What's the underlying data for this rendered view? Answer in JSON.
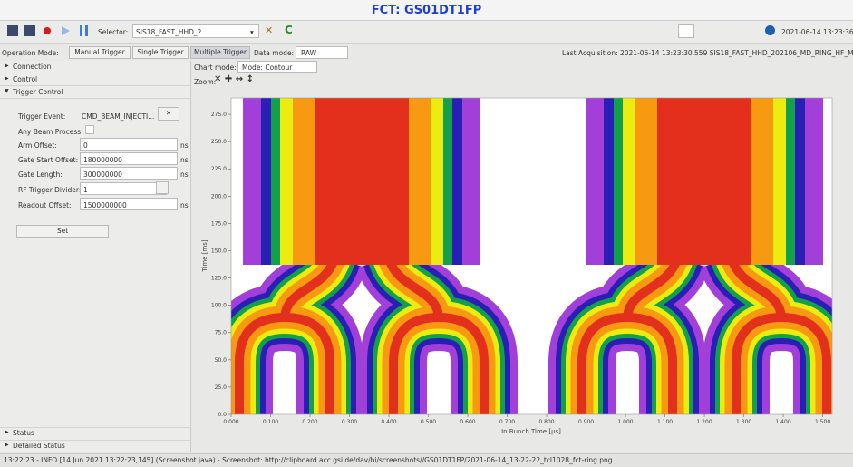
{
  "header": {
    "title": "FCT: GS01DT1FP"
  },
  "toolbar": {
    "selector_label": "Selector:",
    "selector_value": "SIS18_FAST_HHD_2...",
    "timestamp": "2021-06-14 13:23:36"
  },
  "mode_bar": {
    "operation_mode_label": "Operation Mode:",
    "buttons": [
      "Manual Trigger",
      "Single Trigger",
      "Multiple Trigger"
    ],
    "data_mode_label": "Data mode:",
    "data_mode_value": "RAW",
    "last_acquisition": "Last Acquisition: 2021-06-14 13:23:30.559   SIS18_FAST_HHD_202106_MD_RING_HF_M"
  },
  "sidebar": {
    "sections": [
      "Connection",
      "Control",
      "Trigger Control"
    ],
    "fields": [
      {
        "label": "Trigger Event:",
        "value": "CMD_BEAM_INJECTI..."
      },
      {
        "label": "Any Beam Process:"
      },
      {
        "label": "Arm Offset:",
        "value": "0",
        "unit": "ns"
      },
      {
        "label": "Gate Start Offset:",
        "value": "180000000",
        "unit": "ns"
      },
      {
        "label": "Gate Length:",
        "value": "300000000",
        "unit": "ns"
      },
      {
        "label": "RF Trigger Divider:",
        "value": "1"
      },
      {
        "label": "Readout Offset:",
        "value": "1500000000",
        "unit": "ns"
      }
    ],
    "set_button": "Set",
    "bottom_sections": [
      "Status",
      "Detailed Status"
    ]
  },
  "chart_controls": {
    "chart_mode_label": "Chart mode:",
    "chart_mode_value": "Mode: Contour",
    "zoom_label": "Zoom:"
  },
  "plot": {
    "x_label": "In Bunch Time [µs]",
    "y_label": "Time [ms]",
    "xlim": [
      0,
      1.524
    ],
    "ylim": [
      0,
      290
    ],
    "xticks": [
      {
        "value": 0,
        "label": "0.000"
      },
      {
        "value": 0.1,
        "label": "0.100"
      },
      {
        "value": 0.2,
        "label": "0.200"
      },
      {
        "value": 0.3,
        "label": "0.300"
      },
      {
        "value": 0.4,
        "label": "0.400"
      },
      {
        "value": 0.5,
        "label": "0.500"
      },
      {
        "value": 0.6,
        "label": "0.600"
      },
      {
        "value": 0.7,
        "label": "0.700"
      },
      {
        "value": 0.8,
        "label": "0.800"
      },
      {
        "value": 0.9,
        "label": "0.900"
      },
      {
        "value": 1,
        "label": "1.000"
      },
      {
        "value": 1.1,
        "label": "1.100"
      },
      {
        "value": 1.2,
        "label": "1.200"
      },
      {
        "value": 1.3,
        "label": "1.300"
      },
      {
        "value": 1.4,
        "label": "1.400"
      },
      {
        "value": 1.5,
        "label": "1.500"
      }
    ],
    "yticks": [
      {
        "value": 0,
        "label": "0.0"
      },
      {
        "value": 25,
        "label": "25.0"
      },
      {
        "value": 50,
        "label": "50.0"
      },
      {
        "value": 75,
        "label": "75.0"
      },
      {
        "value": 100,
        "label": "100.0"
      },
      {
        "value": 125,
        "label": "125.0"
      },
      {
        "value": 150,
        "label": "150.0"
      },
      {
        "value": 175,
        "label": "175.0"
      },
      {
        "value": 200,
        "label": "200.0"
      },
      {
        "value": 225,
        "label": "225.0"
      },
      {
        "value": 250,
        "label": "250.0"
      },
      {
        "value": 275,
        "label": "275.0"
      }
    ]
  },
  "status_bar": {
    "message": "13:22:23 - INFO [14 Jun 2021 13:22:23,145] (Screenshot.java) - Screenshot: http://clipboard.acc.gsi.de/dav/bi/screenshots//GS01DT1FP/2021-06-14_13-22-22_tcl1028_fct-ring.png"
  }
}
